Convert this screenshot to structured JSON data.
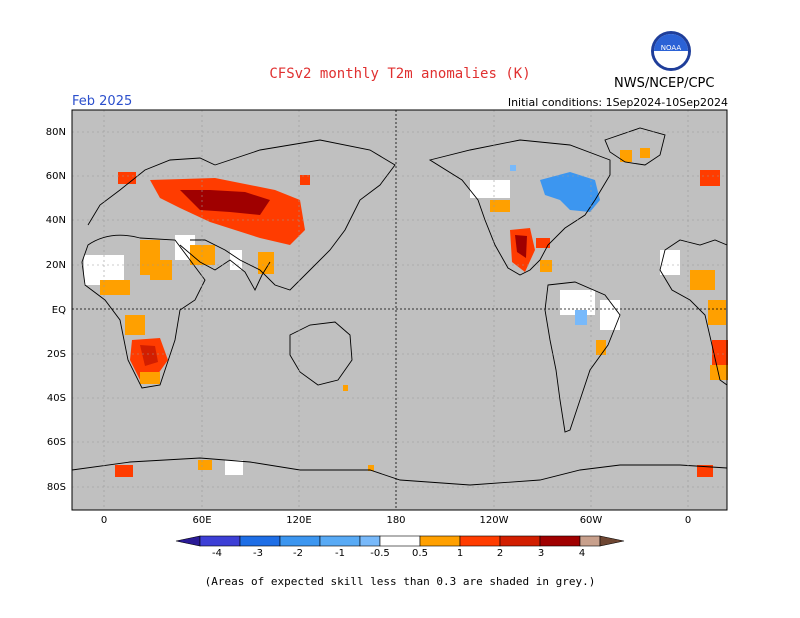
{
  "header": {
    "title": "CFSv2 monthly T2m anomalies (K)",
    "month": "Feb 2025",
    "initial_conditions": "Initial conditions: 1Sep2024-10Sep2024",
    "agency": "NWS/NCEP/CPC",
    "logo_text": "NOAA"
  },
  "map": {
    "lat_labels": [
      "80N",
      "60N",
      "40N",
      "20N",
      "EQ",
      "20S",
      "40S",
      "60S",
      "80S"
    ],
    "lon_labels": [
      "0",
      "60E",
      "120E",
      "180",
      "120W",
      "60W",
      "0"
    ]
  },
  "colorbar": {
    "labels": [
      "-4",
      "-3",
      "-2",
      "-1",
      "-0.5",
      "0.5",
      "1",
      "2",
      "3",
      "4"
    ],
    "colors": {
      "lt_m4": "#2a1a96",
      "m4_m3": "#3d3fd6",
      "m3_m2": "#1e6ee6",
      "m2_m1": "#3c96f0",
      "m1_m05": "#78b9fa",
      "m05_05": "#ffffff",
      "p05_1": "#ffa000",
      "p1_2": "#ff3c00",
      "p2_3": "#d21e00",
      "p3_4": "#a00000",
      "p4_5": "#c8a08c",
      "gt_5": "#6e4632"
    }
  },
  "colors": {
    "title": "#e03030",
    "month": "#2b4fcc",
    "grey_skill": "#c0c0c0"
  },
  "footnote": "(Areas of expected skill less than 0.3 are shaded in grey.)"
}
